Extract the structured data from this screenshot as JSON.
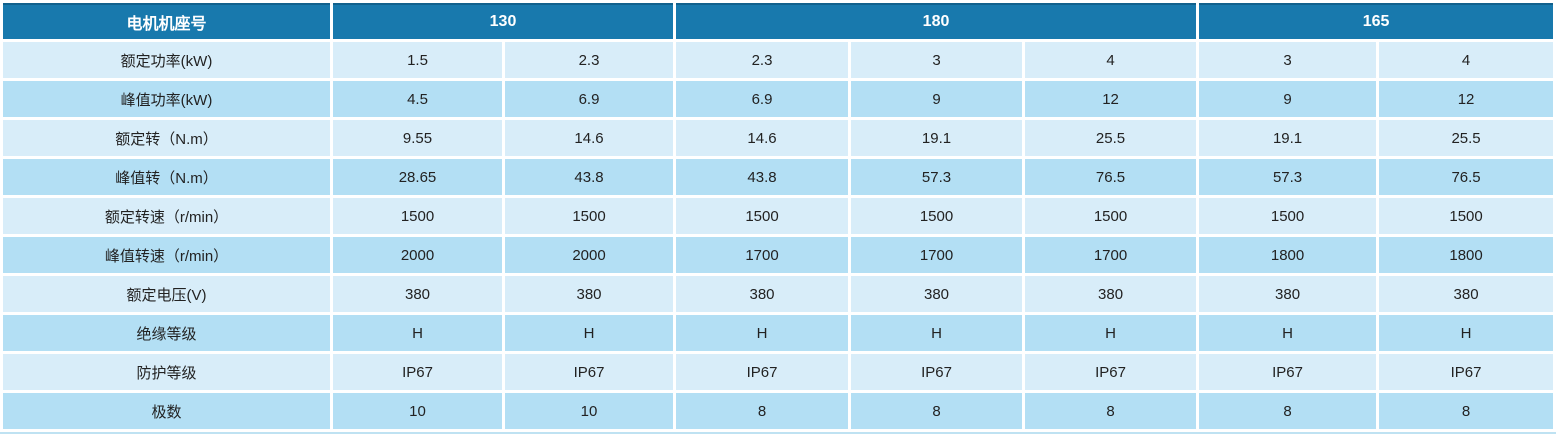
{
  "table": {
    "corner_label": "电机机座号",
    "groups": [
      {
        "label": "130",
        "span": 2
      },
      {
        "label": "180",
        "span": 3
      },
      {
        "label": "165",
        "span": 2
      }
    ],
    "rows": [
      {
        "label": "额定功率(kW)",
        "values": [
          "1.5",
          "2.3",
          "2.3",
          "3",
          "4",
          "3",
          "4"
        ]
      },
      {
        "label": "峰值功率(kW)",
        "values": [
          "4.5",
          "6.9",
          "6.9",
          "9",
          "12",
          "9",
          "12"
        ]
      },
      {
        "label": "额定转（N.m）",
        "values": [
          "9.55",
          "14.6",
          "14.6",
          "19.1",
          "25.5",
          "19.1",
          "25.5"
        ]
      },
      {
        "label": "峰值转（N.m）",
        "values": [
          "28.65",
          "43.8",
          "43.8",
          "57.3",
          "76.5",
          "57.3",
          "76.5"
        ]
      },
      {
        "label": "额定转速（r/min）",
        "values": [
          "1500",
          "1500",
          "1500",
          "1500",
          "1500",
          "1500",
          "1500"
        ]
      },
      {
        "label": "峰值转速（r/min）",
        "values": [
          "2000",
          "2000",
          "1700",
          "1700",
          "1700",
          "1800",
          "1800"
        ]
      },
      {
        "label": "额定电压(V)",
        "values": [
          "380",
          "380",
          "380",
          "380",
          "380",
          "380",
          "380"
        ]
      },
      {
        "label": "绝缘等级",
        "values": [
          "H",
          "H",
          "H",
          "H",
          "H",
          "H",
          "H"
        ]
      },
      {
        "label": "防护等级",
        "values": [
          "IP67",
          "IP67",
          "IP67",
          "IP67",
          "IP67",
          "IP67",
          "IP67"
        ]
      },
      {
        "label": "极数",
        "values": [
          "10",
          "10",
          "8",
          "8",
          "8",
          "8",
          "8"
        ]
      }
    ],
    "colors": {
      "header_bg": "#1879ad",
      "header_text": "#ffffff",
      "row_light": "#d8edf9",
      "row_medium": "#b3dff4",
      "cell_text": "#222222"
    }
  }
}
